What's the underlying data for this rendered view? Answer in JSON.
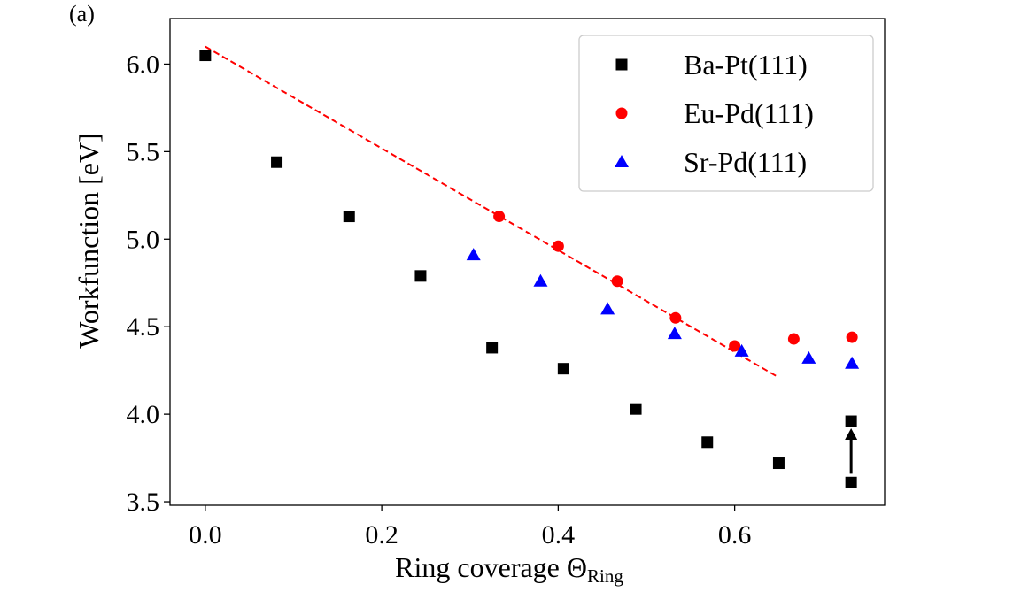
{
  "panel_label": "(a)",
  "chart_data": {
    "type": "scatter",
    "title": "",
    "xlabel_main": "Ring coverage Θ",
    "xlabel_sub": "Ring",
    "ylabel": "Workfunction [eV]",
    "xlim": [
      -0.04,
      0.77
    ],
    "ylim": [
      3.48,
      6.26
    ],
    "xticks": [
      0.0,
      0.2,
      0.4,
      0.6
    ],
    "xtick_labels": [
      "0.0",
      "0.2",
      "0.4",
      "0.6"
    ],
    "yticks": [
      3.5,
      4.0,
      4.5,
      5.0,
      5.5,
      6.0
    ],
    "ytick_labels": [
      "3.5",
      "4.0",
      "4.5",
      "5.0",
      "5.5",
      "6.0"
    ],
    "grid": false,
    "legend_position": "top-right",
    "series": [
      {
        "name": "Ba-Pt(111)",
        "marker": "square",
        "color": "#000000",
        "x": [
          0.0,
          0.081,
          0.163,
          0.244,
          0.325,
          0.406,
          0.488,
          0.569,
          0.65,
          0.732,
          0.732
        ],
        "y": [
          6.05,
          5.44,
          5.13,
          4.79,
          4.38,
          4.26,
          4.03,
          3.84,
          3.72,
          3.96,
          3.61
        ]
      },
      {
        "name": "Eu-Pd(111)",
        "marker": "circle",
        "color": "#ff0000",
        "x": [
          0.333,
          0.4,
          0.467,
          0.533,
          0.6,
          0.667,
          0.733
        ],
        "y": [
          5.13,
          4.96,
          4.76,
          4.55,
          4.39,
          4.43,
          4.44
        ]
      },
      {
        "name": "Sr-Pd(111)",
        "marker": "triangle",
        "color": "#0000ff",
        "x": [
          0.304,
          0.38,
          0.456,
          0.532,
          0.608,
          0.684,
          0.733
        ],
        "y": [
          4.91,
          4.76,
          4.6,
          4.46,
          4.36,
          4.32,
          4.29
        ]
      }
    ],
    "fit_line": {
      "x": [
        0.0,
        0.65
      ],
      "y": [
        6.1,
        4.21
      ],
      "color": "#ff0000",
      "style": "dashed"
    },
    "annotation_arrow": {
      "x": 0.732,
      "y_from": 3.66,
      "y_to": 3.92,
      "color": "#000000"
    }
  }
}
